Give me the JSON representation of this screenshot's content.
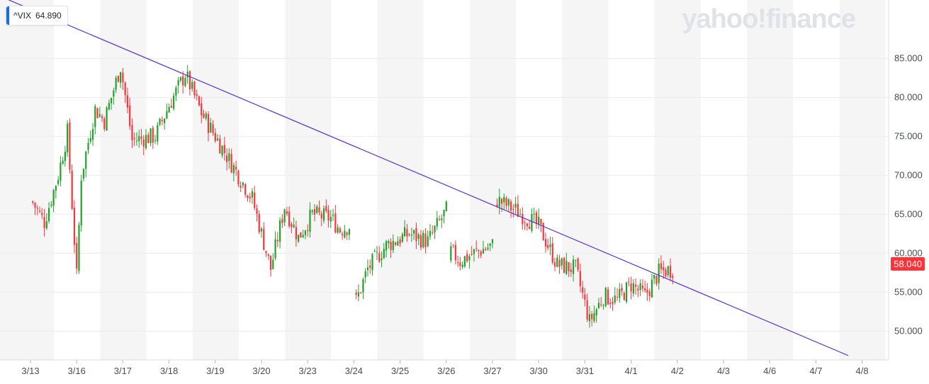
{
  "ticker": {
    "symbol": "^VIX",
    "value": "64.890",
    "accent": "#0f69ff"
  },
  "watermark": "yahoo!finance",
  "last_price": {
    "label": "58.040",
    "color": "#ff333a"
  },
  "chart_data": {
    "type": "candlestick",
    "title": "",
    "xlabel": "",
    "ylabel": "",
    "x_ticks": [
      "3/13",
      "3/16",
      "3/17",
      "3/18",
      "3/19",
      "3/20",
      "3/23",
      "3/24",
      "3/25",
      "3/26",
      "3/27",
      "3/30",
      "3/31",
      "4/1",
      "4/2",
      "4/3",
      "4/6",
      "4/7",
      "4/8"
    ],
    "y_ticks": [
      "50.000",
      "55.000",
      "60.000",
      "65.000",
      "70.000",
      "75.000",
      "80.000",
      "85.000"
    ],
    "ylim": [
      46.3,
      92.5
    ],
    "grid": true,
    "colors": {
      "up": "#1fa12a",
      "down": "#ff333a",
      "trendline": "#5a2fd6",
      "band": "#f5f5f5"
    },
    "path_anchors": [
      [
        0,
        67.0
      ],
      [
        0.3,
        64.0
      ],
      [
        0.6,
        70.0
      ],
      [
        0.8,
        75.5
      ],
      [
        1.0,
        57.0
      ],
      [
        1.1,
        70.0
      ],
      [
        1.4,
        78.5
      ],
      [
        1.6,
        77.0
      ],
      [
        1.95,
        84.0
      ],
      [
        2.2,
        74.5
      ],
      [
        2.7,
        75.0
      ],
      [
        3.0,
        79.0
      ],
      [
        3.35,
        83.0
      ],
      [
        3.7,
        78.0
      ],
      [
        4.0,
        75.0
      ],
      [
        4.5,
        70.0
      ],
      [
        4.8,
        67.0
      ],
      [
        5.2,
        58.0
      ],
      [
        5.5,
        66.0
      ],
      [
        5.8,
        62.0
      ],
      [
        6.1,
        65.0
      ],
      [
        6.5,
        64.5
      ],
      [
        6.7,
        63.0
      ],
      [
        6.9,
        63.5
      ],
      [
        7.0,
        53.0
      ],
      [
        7.3,
        58.0
      ],
      [
        7.7,
        61.0
      ],
      [
        8.2,
        62.5
      ],
      [
        8.6,
        61.5
      ],
      [
        9.0,
        65.5
      ],
      [
        9.05,
        60.5
      ],
      [
        9.3,
        59.0
      ],
      [
        9.6,
        60.0
      ],
      [
        10.0,
        61.0
      ],
      [
        10.05,
        67.0
      ],
      [
        10.5,
        65.5
      ],
      [
        11.0,
        63.5
      ],
      [
        11.4,
        58.5
      ],
      [
        11.8,
        58.0
      ],
      [
        12.1,
        51.2
      ],
      [
        12.4,
        54.5
      ],
      [
        12.7,
        54.0
      ],
      [
        13.0,
        56.0
      ],
      [
        13.3,
        54.5
      ],
      [
        13.6,
        57.5
      ],
      [
        13.9,
        58.0
      ]
    ],
    "gaps": [
      [
        6.9,
        7.0
      ],
      [
        9.05,
        9.05
      ],
      [
        10.0,
        10.05
      ]
    ],
    "trendline": {
      "x": [
        2.4,
        14.3
      ],
      "y": [
        85.3,
        55.4
      ],
      "extends": "both"
    }
  }
}
